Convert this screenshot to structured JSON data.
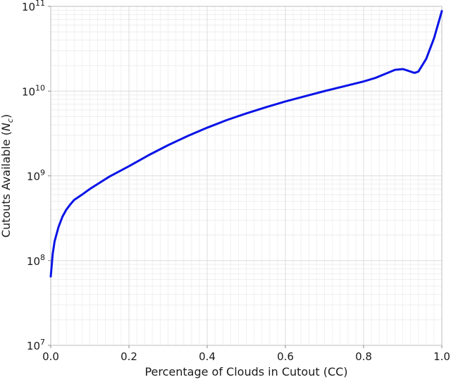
{
  "chart_data": {
    "type": "line",
    "title": "",
    "xlabel": "Percentage of Clouds in Cutout (CC)",
    "ylabel_main": "Cutouts Available (",
    "ylabel_sym": "N",
    "ylabel_sub": "c",
    "ylabel_end": ")",
    "xlim": [
      0.0,
      1.0
    ],
    "ylim": [
      10000000,
      100000000000
    ],
    "yscale": "log",
    "grid": true,
    "x_ticks": [
      "0.0",
      "0.2",
      "0.4",
      "0.6",
      "0.8",
      "1.0"
    ],
    "y_ticks": [
      {
        "base": "10",
        "exp": "7",
        "value": 10000000
      },
      {
        "base": "10",
        "exp": "8",
        "value": 100000000
      },
      {
        "base": "10",
        "exp": "9",
        "value": 1000000000
      },
      {
        "base": "10",
        "exp": "10",
        "value": 10000000000
      },
      {
        "base": "10",
        "exp": "11",
        "value": 100000000000
      }
    ],
    "series": [
      {
        "color": "#0a14e6",
        "x": [
          0.0,
          0.005,
          0.01,
          0.02,
          0.03,
          0.04,
          0.05,
          0.06,
          0.08,
          0.1,
          0.15,
          0.2,
          0.25,
          0.3,
          0.35,
          0.4,
          0.45,
          0.5,
          0.55,
          0.6,
          0.65,
          0.7,
          0.75,
          0.8,
          0.83,
          0.86,
          0.88,
          0.9,
          0.91,
          0.93,
          0.94,
          0.96,
          0.98,
          1.0
        ],
        "y": [
          65000000,
          120000000,
          170000000,
          250000000,
          330000000,
          400000000,
          460000000,
          520000000,
          600000000,
          700000000,
          980000000,
          1300000000,
          1750000000,
          2300000000,
          2950000000,
          3700000000,
          4550000000,
          5450000000,
          6450000000,
          7550000000,
          8700000000,
          10000000000,
          11400000000,
          13000000000,
          14300000000,
          16300000000,
          17800000000,
          18200000000,
          17600000000,
          16400000000,
          17000000000,
          24000000000,
          42000000000,
          88000000000
        ]
      }
    ]
  }
}
